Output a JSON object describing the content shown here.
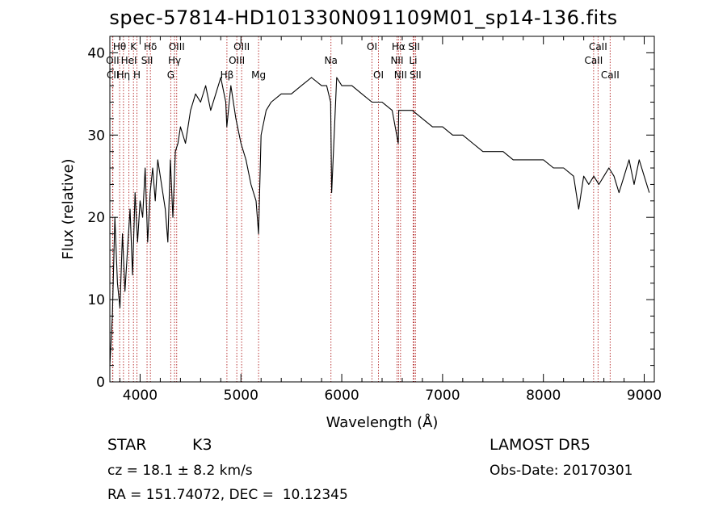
{
  "title": "spec-57814-HD101330N091109M01_sp14-136.fits",
  "footer": {
    "object_class": "STAR",
    "subclass": "K3",
    "survey": "LAMOST DR5",
    "redshift": "cz = 18.1 ± 8.2 km/s",
    "obs_date": "Obs-Date: 20170301",
    "coords": "RA = 151.74072, DEC =  10.12345"
  },
  "chart_data": {
    "type": "line",
    "title": "spec-57814-HD101330N091109M01_sp14-136.fits",
    "xlabel": "Wavelength (Å)",
    "ylabel": "Flux (relative)",
    "xlim": [
      3700,
      9100
    ],
    "ylim": [
      0,
      42
    ],
    "xticks": [
      4000,
      5000,
      6000,
      7000,
      8000,
      9000
    ],
    "yticks": [
      0,
      10,
      20,
      30,
      40
    ],
    "grid": false,
    "series": [
      {
        "x": [
          3700,
          3725,
          3750,
          3775,
          3800,
          3825,
          3850,
          3875,
          3900,
          3925,
          3950,
          3975,
          4000,
          4025,
          4050,
          4075,
          4100,
          4125,
          4150,
          4175,
          4200,
          4225,
          4250,
          4275,
          4300,
          4325,
          4350,
          4375,
          4400,
          4450,
          4500,
          4550,
          4600,
          4650,
          4700,
          4750,
          4800,
          4850,
          4860,
          4900,
          4950,
          5000,
          5050,
          5100,
          5150,
          5175,
          5200,
          5250,
          5300,
          5400,
          5500,
          5600,
          5700,
          5800,
          5850,
          5890,
          5900,
          5950,
          6000,
          6100,
          6200,
          6300,
          6400,
          6500,
          6560,
          6565,
          6600,
          6700,
          6800,
          6900,
          7000,
          7100,
          7200,
          7300,
          7400,
          7500,
          7600,
          7700,
          7800,
          7900,
          8000,
          8100,
          8200,
          8300,
          8350,
          8400,
          8450,
          8500,
          8550,
          8600,
          8650,
          8700,
          8750,
          8800,
          8850,
          8900,
          8950,
          9000,
          9050
        ],
        "y": [
          2,
          8,
          20,
          12,
          9,
          18,
          11,
          16,
          21,
          13,
          23,
          17,
          22,
          20,
          26,
          17,
          23,
          26,
          22,
          27,
          25,
          23,
          21,
          17,
          27,
          20,
          28,
          29,
          31,
          29,
          33,
          35,
          34,
          36,
          33,
          35,
          37,
          34,
          31,
          36,
          32,
          29,
          27,
          24,
          22,
          18,
          30,
          33,
          34,
          35,
          35,
          36,
          37,
          36,
          36,
          34,
          23,
          37,
          36,
          36,
          35,
          34,
          34,
          33,
          29,
          33,
          33,
          33,
          32,
          31,
          31,
          30,
          30,
          29,
          28,
          28,
          28,
          27,
          27,
          27,
          27,
          26,
          26,
          25,
          21,
          25,
          24,
          25,
          24,
          25,
          26,
          25,
          23,
          25,
          27,
          24,
          27,
          25,
          23
        ]
      }
    ],
    "annotations": [
      {
        "label": "Hθ",
        "x": 3797,
        "row": 1
      },
      {
        "label": "OII",
        "x": 3727,
        "row": 2
      },
      {
        "label": "CII",
        "x": 3730,
        "row": 3
      },
      {
        "label": "K",
        "x": 3934,
        "row": 1
      },
      {
        "label": "HeI",
        "x": 3889,
        "row": 2
      },
      {
        "label": "Hη",
        "x": 3835,
        "row": 3
      },
      {
        "label": "H",
        "x": 3969,
        "row": 3
      },
      {
        "label": "Hδ",
        "x": 4102,
        "row": 1
      },
      {
        "label": "SII",
        "x": 4069,
        "row": 2
      },
      {
        "label": "OIII",
        "x": 4363,
        "row": 1
      },
      {
        "label": "Hγ",
        "x": 4341,
        "row": 2
      },
      {
        "label": "G",
        "x": 4304,
        "row": 3
      },
      {
        "label": "OIII",
        "x": 5007,
        "row": 1
      },
      {
        "label": "OIII",
        "x": 4959,
        "row": 2
      },
      {
        "label": "Hβ",
        "x": 4861,
        "row": 3
      },
      {
        "label": "Mg",
        "x": 5175,
        "row": 3
      },
      {
        "label": "Na",
        "x": 5893,
        "row": 2
      },
      {
        "label": "OI",
        "x": 6300,
        "row": 1
      },
      {
        "label": "OI",
        "x": 6364,
        "row": 3
      },
      {
        "label": "Hα",
        "x": 6563,
        "row": 1
      },
      {
        "label": "NII",
        "x": 6548,
        "row": 2
      },
      {
        "label": "NII",
        "x": 6583,
        "row": 3
      },
      {
        "label": "SII",
        "x": 6717,
        "row": 1
      },
      {
        "label": "Li",
        "x": 6708,
        "row": 2
      },
      {
        "label": "SII",
        "x": 6731,
        "row": 3
      },
      {
        "label": "CaII",
        "x": 8542,
        "row": 1
      },
      {
        "label": "CaII",
        "x": 8498,
        "row": 2
      },
      {
        "label": "CaII",
        "x": 8662,
        "row": 3
      }
    ]
  }
}
